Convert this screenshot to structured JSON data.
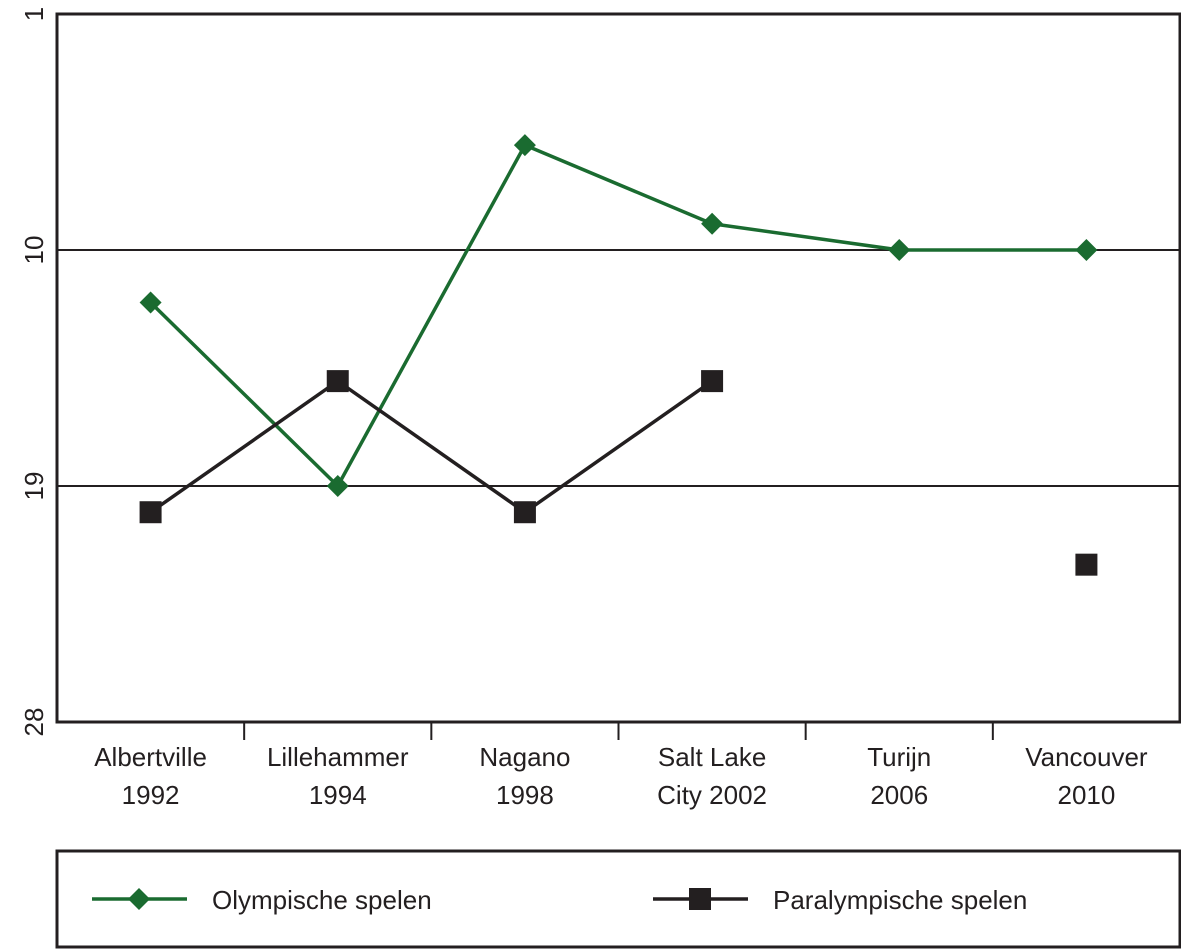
{
  "chart_data": {
    "type": "line",
    "categories": [
      [
        "Albertville",
        "1992"
      ],
      [
        "Lillehammer",
        "1994"
      ],
      [
        "Nagano",
        "1998"
      ],
      [
        "Salt Lake",
        "City 2002"
      ],
      [
        "Turijn",
        "2006"
      ],
      [
        "Vancouver",
        "2010"
      ]
    ],
    "y_axis": {
      "inverted": true,
      "ylim": [
        1,
        28
      ],
      "tick_labels": [
        "1",
        "10",
        "19",
        "28"
      ],
      "tick_values": [
        1,
        10,
        19,
        28
      ],
      "grid": true
    },
    "series": [
      {
        "name": "Olympische spelen",
        "color": "#1a6b30",
        "marker": "diamond",
        "values": [
          12,
          19,
          6,
          9,
          10,
          10
        ]
      },
      {
        "name": "Paralympische spelen",
        "color": "#231f20",
        "marker": "square",
        "values": [
          20,
          15,
          20,
          15,
          null,
          22
        ]
      }
    ],
    "legend": {
      "placement": "bottom"
    }
  }
}
